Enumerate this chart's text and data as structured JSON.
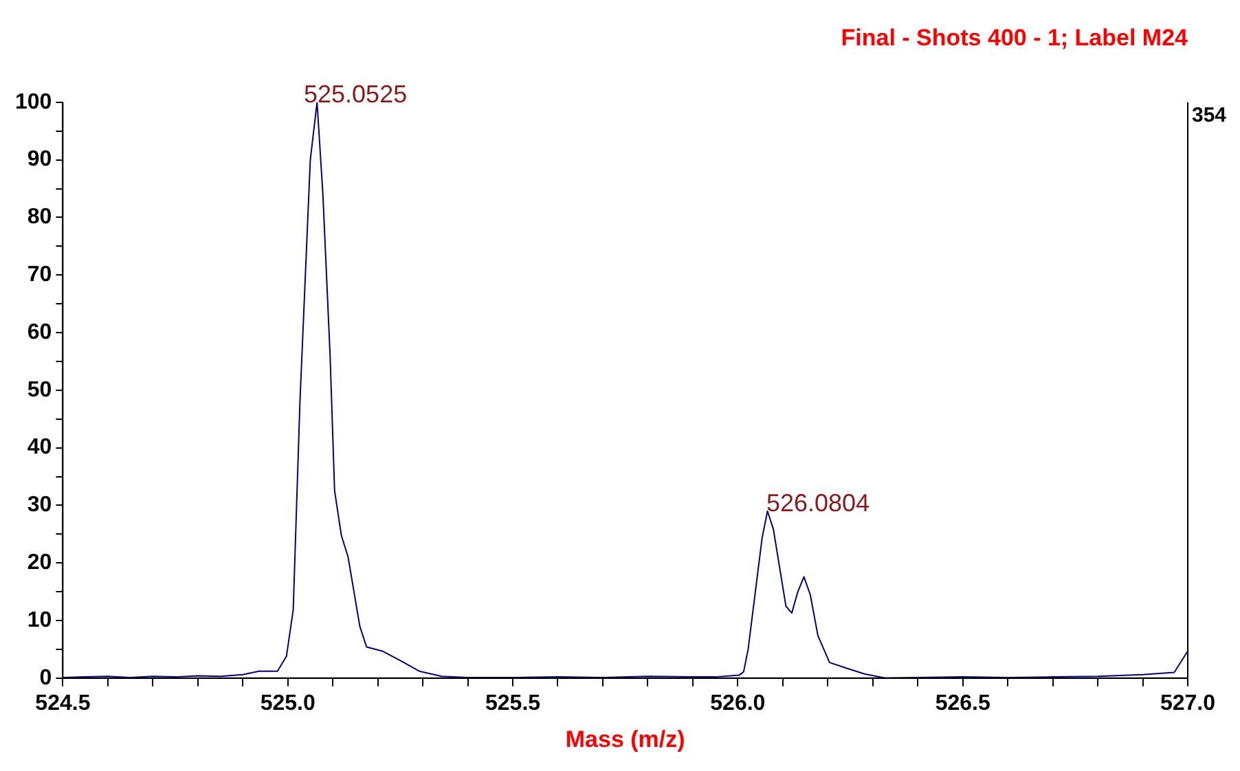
{
  "chart_data": {
    "type": "line",
    "title": "Final - Shots 400 - 1; Label M24",
    "xlabel": "Mass (m/z)",
    "series": [
      {
        "color": "#000080",
        "x": [
          524.5,
          524.55,
          524.6,
          524.65,
          524.7,
          524.75,
          524.8,
          524.85,
          524.9,
          524.936,
          524.977,
          524.997,
          525.012,
          525.027,
          525.05,
          525.065,
          525.078,
          525.094,
          525.104,
          525.119,
          525.134,
          525.16,
          525.175,
          525.21,
          525.251,
          525.292,
          525.342,
          525.4,
          525.5,
          525.6,
          525.7,
          525.8,
          525.9,
          525.95,
          526.003,
          526.013,
          526.023,
          526.054,
          526.066,
          526.079,
          526.107,
          526.12,
          526.133,
          526.147,
          526.161,
          526.178,
          526.204,
          526.242,
          526.283,
          526.328,
          526.4,
          526.5,
          526.6,
          526.7,
          526.8,
          526.9,
          526.97,
          527.0
        ],
        "values": [
          0.1,
          0.2,
          0.3,
          0.1,
          0.3,
          0.2,
          0.4,
          0.3,
          0.6,
          1.2,
          1.2,
          3.8,
          11.8,
          48,
          90,
          100,
          84,
          56,
          32.5,
          24.8,
          21,
          9,
          5.4,
          4.7,
          3,
          1.2,
          0.3,
          0.1,
          0.1,
          0.2,
          0.1,
          0.3,
          0.2,
          0.2,
          0.5,
          1.1,
          5,
          24.3,
          29,
          25.9,
          12.5,
          11.3,
          14.9,
          17.6,
          14.5,
          7.4,
          2.7,
          1.7,
          0.7,
          0,
          0.1,
          0.2,
          0.1,
          0.2,
          0.3,
          0.6,
          1,
          4.7
        ]
      }
    ],
    "xlim": [
      524.5,
      527.0
    ],
    "xticks": [
      524.5,
      {
        "value": 524.6,
        "label": null
      },
      {
        "value": 524.7,
        "label": null
      },
      {
        "value": 524.8,
        "label": null
      },
      {
        "value": 524.9,
        "label": null
      },
      {
        "value": 525,
        "label": "525.0"
      },
      {
        "value": 525.1,
        "label": null
      },
      {
        "value": 525.2,
        "label": null
      },
      {
        "value": 525.3,
        "label": null
      },
      {
        "value": 525.4,
        "label": null
      },
      525.5,
      {
        "value": 525.6,
        "label": null
      },
      {
        "value": 525.7,
        "label": null
      },
      {
        "value": 525.8,
        "label": null
      },
      {
        "value": 525.9,
        "label": null
      },
      {
        "value": 526,
        "label": "526.0"
      },
      {
        "value": 526.1,
        "label": null
      },
      {
        "value": 526.2,
        "label": null
      },
      {
        "value": 526.3,
        "label": null
      },
      {
        "value": 526.4,
        "label": null
      },
      526.5,
      {
        "value": 526.6,
        "label": null
      },
      {
        "value": 526.7,
        "label": null
      },
      {
        "value": 526.8,
        "label": null
      },
      {
        "value": 526.9,
        "label": null
      },
      {
        "value": 527,
        "label": "527.0"
      }
    ],
    "ylim": [
      0,
      100
    ],
    "yticks": [
      0,
      {
        "value": 5,
        "label": null
      },
      10,
      {
        "value": 15,
        "label": null
      },
      20,
      {
        "value": 25,
        "label": null
      },
      30,
      {
        "value": 35,
        "label": null
      },
      40,
      {
        "value": 45,
        "label": null
      },
      50,
      {
        "value": 55,
        "label": null
      },
      60,
      {
        "value": 65,
        "label": null
      },
      70,
      {
        "value": 75,
        "label": null
      },
      80,
      {
        "value": 85,
        "label": null
      },
      90,
      {
        "value": 95,
        "label": null
      },
      100
    ],
    "annotations": [
      {
        "text": "525.0525",
        "x": 525.0525,
        "y": 100
      },
      {
        "text": "526.0804",
        "x": 526.0804,
        "y": 29
      },
      "354"
    ],
    "grid": false,
    "legend": false,
    "marker": "none",
    "line_style": "solid"
  }
}
